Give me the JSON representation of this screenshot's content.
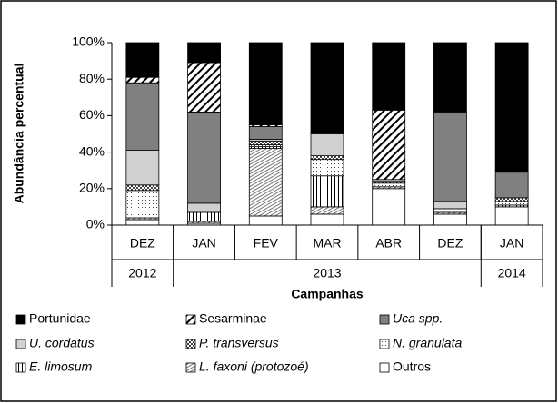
{
  "chart_data": {
    "type": "stacked_bar",
    "y_label": "Abundância percentual",
    "x_label": "Campanhas",
    "categories": [
      "DEZ",
      "JAN",
      "FEV",
      "MAR",
      "ABR",
      "DEZ",
      "JAN"
    ],
    "category_groups": [
      "2012",
      "2013",
      "2013",
      "2013",
      "2013",
      "2013",
      "2014"
    ],
    "ylim": [
      0,
      100
    ],
    "yticks": [
      {
        "value": 0,
        "label": "0%"
      },
      {
        "value": 20,
        "label": "20%"
      },
      {
        "value": 40,
        "label": "40%"
      },
      {
        "value": 60,
        "label": "60%"
      },
      {
        "value": 80,
        "label": "80%"
      },
      {
        "value": 100,
        "label": "100%"
      }
    ],
    "series": [
      {
        "name": "Portunidae",
        "color": "#000000",
        "pattern": "solid",
        "values": [
          19,
          11,
          45,
          49,
          37,
          38,
          71
        ]
      },
      {
        "name": "Sesarminae",
        "color": "#000000",
        "pattern": "diagonal",
        "values": [
          3,
          27,
          1,
          0,
          38,
          0,
          0
        ]
      },
      {
        "name": "Uca spp.",
        "color": "#808080",
        "pattern": "solid",
        "italic": true,
        "values": [
          37,
          50,
          7,
          1,
          0,
          49,
          14
        ]
      },
      {
        "name": "U. cordatus",
        "color": "#d0d0d0",
        "pattern": "solid",
        "italic": true,
        "values": [
          19,
          5,
          1,
          12,
          1,
          4,
          0
        ]
      },
      {
        "name": "P. transversus",
        "color": "#555555",
        "pattern": "checker",
        "italic": true,
        "values": [
          3,
          0,
          2,
          2,
          1,
          0,
          2
        ]
      },
      {
        "name": "N. granulata",
        "color": "#666666",
        "pattern": "dots",
        "italic": true,
        "values": [
          15,
          0,
          1,
          9,
          2,
          2,
          2
        ]
      },
      {
        "name": "E. limosum",
        "color": "#000000",
        "pattern": "vertical",
        "italic": true,
        "values": [
          0,
          5,
          1,
          17,
          0,
          0,
          1
        ]
      },
      {
        "name": "L. faxoni (protozoé)",
        "color": "#555555",
        "pattern": "fine",
        "italic": true,
        "values": [
          1,
          1,
          37,
          4,
          1,
          1,
          0
        ]
      },
      {
        "name": "Outros",
        "color": "#ffffff",
        "pattern": "solid",
        "values": [
          3,
          1,
          5,
          6,
          20,
          6,
          10
        ]
      }
    ]
  }
}
